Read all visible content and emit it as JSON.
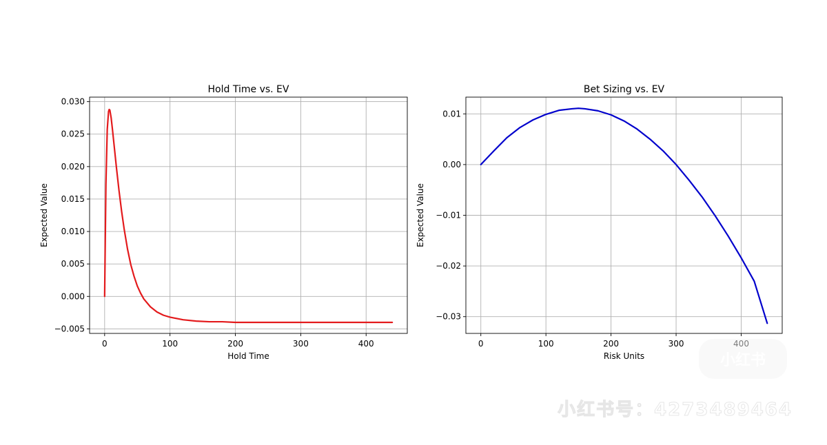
{
  "chart_data": [
    {
      "type": "line",
      "title": "Hold Time vs. EV",
      "xlabel": "Hold Time",
      "ylabel": "Expected Value",
      "xlim": [
        -23,
        463
      ],
      "ylim": [
        -0.0057,
        0.0307
      ],
      "xticks": [
        0,
        100,
        200,
        300,
        400
      ],
      "xtick_labels": [
        "0",
        "100",
        "200",
        "300",
        "400"
      ],
      "yticks": [
        -0.005,
        0.0,
        0.005,
        0.01,
        0.015,
        0.02,
        0.025,
        0.03
      ],
      "ytick_labels": [
        "−0.005",
        "0.000",
        "0.005",
        "0.010",
        "0.015",
        "0.020",
        "0.025",
        "0.030"
      ],
      "grid": true,
      "color": "#e31a1c",
      "series": [
        {
          "x": [
            0,
            2,
            4,
            6,
            7,
            8,
            10,
            12,
            15,
            18,
            22,
            26,
            30,
            35,
            40,
            45,
            50,
            55,
            60,
            70,
            80,
            90,
            100,
            120,
            140,
            160,
            180,
            200,
            250,
            300,
            350,
            400,
            440
          ],
          "values": [
            0.0,
            0.0173,
            0.0257,
            0.0285,
            0.0288,
            0.0287,
            0.0275,
            0.0257,
            0.0228,
            0.0199,
            0.0163,
            0.0131,
            0.0103,
            0.0073,
            0.0049,
            0.0031,
            0.0016,
            0.0005,
            -0.0004,
            -0.0016,
            -0.0024,
            -0.0029,
            -0.0032,
            -0.0036,
            -0.0038,
            -0.0039,
            -0.0039,
            -0.004,
            -0.004,
            -0.004,
            -0.004,
            -0.004,
            -0.004
          ]
        }
      ]
    },
    {
      "type": "line",
      "title": "Bet Sizing vs. EV",
      "xlabel": "Risk Units",
      "ylabel": "Expected Value",
      "xlim": [
        -23,
        463
      ],
      "ylim": [
        -0.0333,
        0.0133
      ],
      "xticks": [
        0,
        100,
        200,
        300,
        400
      ],
      "xtick_labels": [
        "0",
        "100",
        "200",
        "300",
        "400"
      ],
      "yticks": [
        -0.03,
        -0.02,
        -0.01,
        0.0,
        0.01
      ],
      "ytick_labels": [
        "−0.03",
        "−0.02",
        "−0.01",
        "0.00",
        "0.01"
      ],
      "grid": true,
      "color": "#0000cc",
      "series": [
        {
          "x": [
            0,
            20,
            40,
            60,
            80,
            100,
            120,
            140,
            150,
            160,
            180,
            200,
            220,
            240,
            260,
            280,
            300,
            320,
            340,
            360,
            380,
            400,
            420,
            440
          ],
          "values": [
            0.0,
            0.0027,
            0.0053,
            0.0073,
            0.0088,
            0.0099,
            0.0107,
            0.011,
            0.0111,
            0.011,
            0.0106,
            0.0098,
            0.0086,
            0.007,
            0.005,
            0.0027,
            0.0,
            -0.0031,
            -0.0064,
            -0.0101,
            -0.0141,
            -0.0184,
            -0.023,
            -0.0313
          ]
        }
      ]
    }
  ],
  "watermark": {
    "badge": "小红书",
    "id_text": "小红书号：4273489464"
  }
}
